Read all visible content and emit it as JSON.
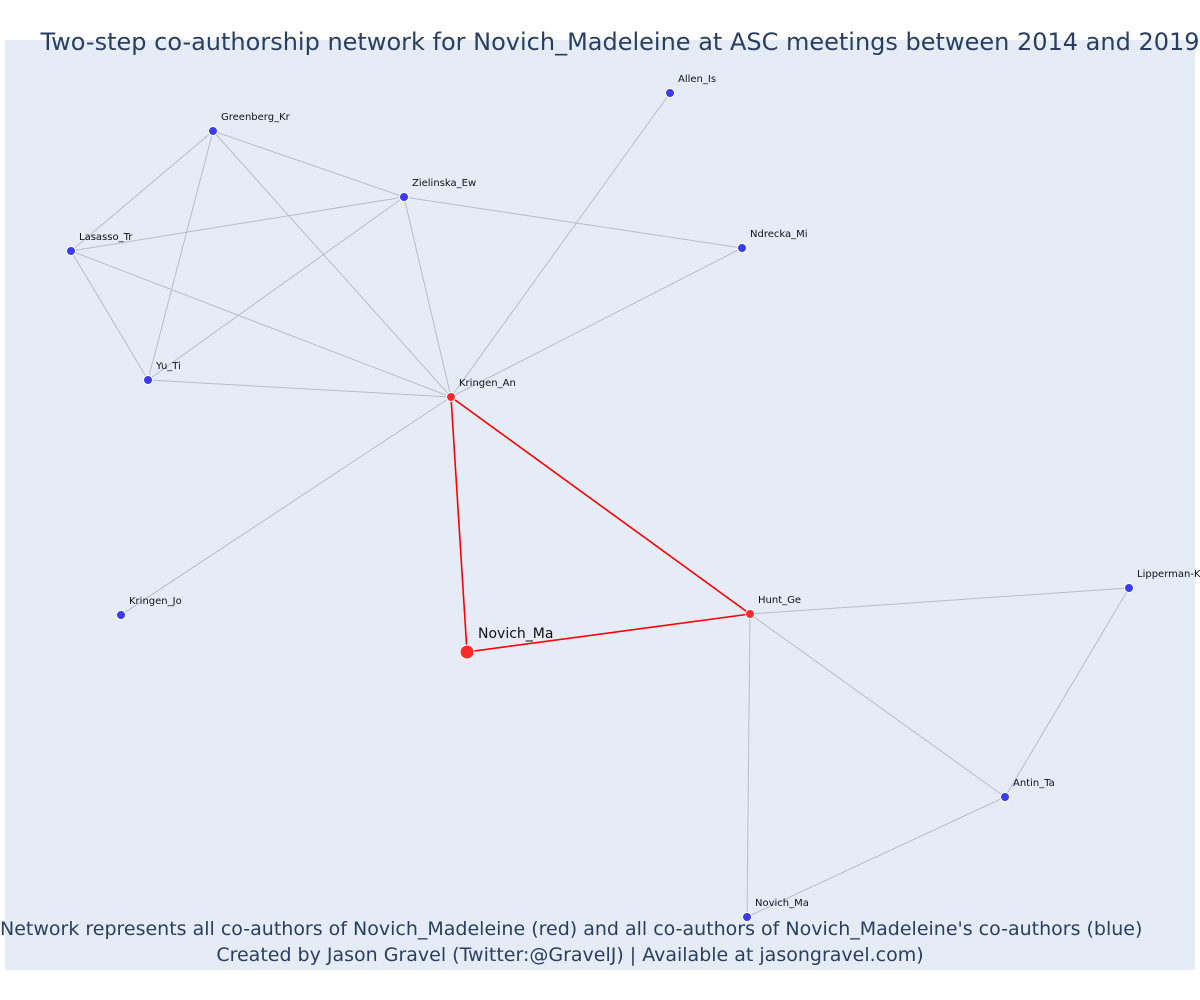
{
  "title": "Two-step co-authorship network for Novich_Madeleine at ASC meetings between 2014 and 2019",
  "caption_line1": "Network represents all co-authors of Novich_Madeleine (red) and all co-authors of Novich_Madeleine's co-authors (blue)",
  "caption_line2": "Created by Jason Gravel (Twitter:@GravelJ) | Available at jasongravel.com)",
  "colors": {
    "plot_background": "#e5ecf6",
    "coauthor_red": "#ff2a2a",
    "second_step_blue": "#3b3bf0",
    "edge_gray": "#b9bccc",
    "focus_edge_red": "#ff0000"
  },
  "nodes": [
    {
      "id": "focus",
      "label": "Novich_Ma",
      "group": "focus"
    },
    {
      "id": "kringen_an",
      "label": "Kringen_An",
      "group": "coauthor"
    },
    {
      "id": "hunt_ge",
      "label": "Hunt_Ge",
      "group": "coauthor"
    },
    {
      "id": "allen_is",
      "label": "Allen_Is",
      "group": "second"
    },
    {
      "id": "greenberg_kr",
      "label": "Greenberg_Kr",
      "group": "second"
    },
    {
      "id": "zielinska_ew",
      "label": "Zielinska_Ew",
      "group": "second"
    },
    {
      "id": "lasasso_tr",
      "label": "Lasasso_Tr",
      "group": "second"
    },
    {
      "id": "ndrecka_mi",
      "label": "Ndrecka_Mi",
      "group": "second"
    },
    {
      "id": "yu_ti",
      "label": "Yu_Ti",
      "group": "second"
    },
    {
      "id": "kringen_jo",
      "label": "Kringen_Jo",
      "group": "second"
    },
    {
      "id": "lipperman",
      "label": "Lipperman-K",
      "group": "second"
    },
    {
      "id": "antin_ta",
      "label": "Antin_Ta",
      "group": "second"
    },
    {
      "id": "novich_ma2",
      "label": "Novich_Ma",
      "group": "second"
    }
  ],
  "edges": [
    [
      "focus",
      "kringen_an",
      "focus"
    ],
    [
      "focus",
      "hunt_ge",
      "focus"
    ],
    [
      "kringen_an",
      "hunt_ge",
      "focus"
    ],
    [
      "kringen_an",
      "allen_is",
      "other"
    ],
    [
      "kringen_an",
      "greenberg_kr",
      "other"
    ],
    [
      "kringen_an",
      "zielinska_ew",
      "other"
    ],
    [
      "kringen_an",
      "lasasso_tr",
      "other"
    ],
    [
      "kringen_an",
      "ndrecka_mi",
      "other"
    ],
    [
      "kringen_an",
      "yu_ti",
      "other"
    ],
    [
      "kringen_an",
      "kringen_jo",
      "other"
    ],
    [
      "greenberg_kr",
      "zielinska_ew",
      "other"
    ],
    [
      "greenberg_kr",
      "lasasso_tr",
      "other"
    ],
    [
      "greenberg_kr",
      "yu_ti",
      "other"
    ],
    [
      "zielinska_ew",
      "lasasso_tr",
      "other"
    ],
    [
      "zielinska_ew",
      "yu_ti",
      "other"
    ],
    [
      "zielinska_ew",
      "ndrecka_mi",
      "other"
    ],
    [
      "lasasso_tr",
      "yu_ti",
      "other"
    ],
    [
      "hunt_ge",
      "lipperman",
      "other"
    ],
    [
      "hunt_ge",
      "antin_ta",
      "other"
    ],
    [
      "hunt_ge",
      "novich_ma2",
      "other"
    ],
    [
      "lipperman",
      "antin_ta",
      "other"
    ],
    [
      "antin_ta",
      "novich_ma2",
      "other"
    ]
  ]
}
